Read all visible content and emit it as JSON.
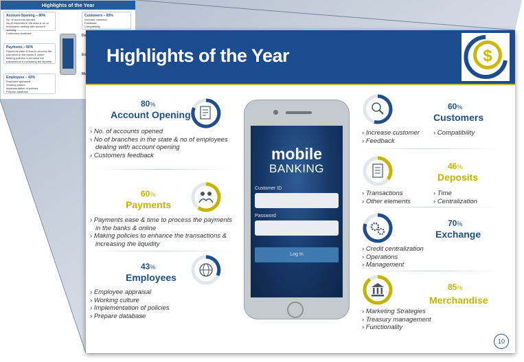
{
  "thumbnail": {
    "title": "Highlights of the Year",
    "boxes": [
      {
        "title": "Account Opening – 80%",
        "items": [
          "No. of accounts opened",
          "No of branches in the state & no of employees dealing with account opening",
          "Customers feedback"
        ]
      },
      {
        "title": "Customers – 60%",
        "items": [
          "Increase customer",
          "Feedback",
          "Compatibility"
        ]
      },
      {
        "title": "Payments – 60%",
        "items": [
          "Payments ease & time to process the payments in the banks & online",
          "Making policies to enhance the transactions & increasing the liquidity"
        ]
      },
      {
        "title": "Employees – 43%",
        "items": [
          "Employee appraisal",
          "Working culture",
          "Implementation of policies",
          "Prepare database"
        ]
      }
    ],
    "side_labels": [
      "De",
      "Ex",
      "Me"
    ]
  },
  "slide": {
    "title": "Highlights of the Year",
    "page_number": "10",
    "colors": {
      "header": "#1b4c8f",
      "blue": "#1f4e8a",
      "gold": "#c4b400",
      "accent_rule": "#b9c13a"
    },
    "account_opening": {
      "percent": "80",
      "label": "Account Opening",
      "items": [
        "No. of accounts opened",
        "No of branches in the state & no of employees dealing with account opening",
        "Customers feedback"
      ]
    },
    "payments": {
      "percent": "60",
      "label": "Payments",
      "items": [
        "Payments ease & time to process the payments in the banks & online",
        "Making policies to enhance the transactions & increasing the liquidity"
      ]
    },
    "employees": {
      "percent": "43",
      "label": "Employees",
      "items": [
        "Employee appraisal",
        "Working culture",
        "Implementation of policies",
        "Prepare database"
      ]
    },
    "customers": {
      "percent": "60",
      "label": "Customers",
      "items_left": [
        "Increase customer",
        "Feedback"
      ],
      "items_right": [
        "Compatibility"
      ]
    },
    "deposits": {
      "percent": "46",
      "label": "Deposits",
      "items_left": [
        "Transactions",
        "Other elements"
      ],
      "items_right": [
        "Time",
        "Centralization"
      ]
    },
    "exchange": {
      "percent": "70",
      "label": "Exchange",
      "items": [
        "Credit centralization",
        "Operations",
        "Management"
      ]
    },
    "merchandise": {
      "percent": "85",
      "label": "Merchandise",
      "items": [
        "Marketing Strategies",
        "Treasury management",
        "Functionality"
      ]
    },
    "phone": {
      "line1": "mobile",
      "line2": "BANKING",
      "field1_label": "Customer ID",
      "field2_label": "Password",
      "button": "Log In"
    },
    "percent_unit": "%"
  }
}
